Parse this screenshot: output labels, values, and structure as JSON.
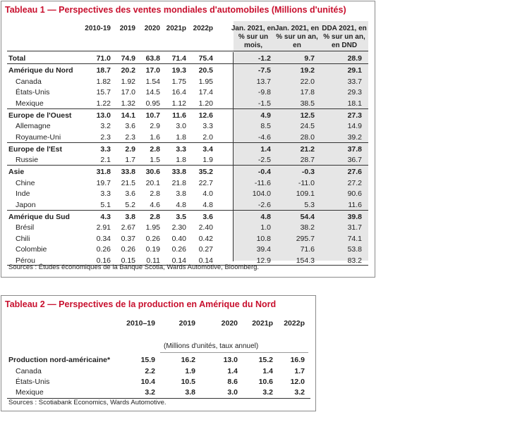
{
  "table1": {
    "title": "Tableau 1 — Perspectives des ventes mondiales d'automobiles (Millions d'unités)",
    "columns": [
      "2010-19",
      "2019",
      "2020",
      "2021p",
      "2022p"
    ],
    "columns_pct": [
      "Jan. 2021, en % sur un mois,",
      "Jan. 2021, en % sur un an, en",
      "DDA 2021, en % sur un an, en DND"
    ],
    "source": "Sources : Études économiques de la Banque Scotia, Wards Automotive, Bloomberg.",
    "groups": [
      {
        "rows": [
          {
            "label": "Total",
            "bold": true,
            "values": [
              "71.0",
              "74.9",
              "63.8",
              "71.4",
              "75.4"
            ],
            "pct": [
              "-1.2",
              "9.7",
              "28.9"
            ]
          }
        ]
      },
      {
        "rows": [
          {
            "label": "Amérique du Nord",
            "bold": true,
            "values": [
              "18.7",
              "20.2",
              "17.0",
              "19.3",
              "20.5"
            ],
            "pct": [
              "-7.5",
              "19.2",
              "29.1"
            ]
          },
          {
            "label": "Canada",
            "values": [
              "1.82",
              "1.92",
              "1.54",
              "1.75",
              "1.95"
            ],
            "pct": [
              "13.7",
              "22.0",
              "33.7"
            ]
          },
          {
            "label": "États-Unis",
            "values": [
              "15.7",
              "17.0",
              "14.5",
              "16.4",
              "17.4"
            ],
            "pct": [
              "-9.8",
              "17.8",
              "29.3"
            ]
          },
          {
            "label": "Mexique",
            "values": [
              "1.22",
              "1.32",
              "0.95",
              "1.12",
              "1.20"
            ],
            "pct": [
              "-1.5",
              "38.5",
              "18.1"
            ]
          }
        ]
      },
      {
        "rows": [
          {
            "label": "Europe de l'Ouest",
            "bold": true,
            "values": [
              "13.0",
              "14.1",
              "10.7",
              "11.6",
              "12.6"
            ],
            "pct": [
              "4.9",
              "12.5",
              "27.3"
            ]
          },
          {
            "label": "Allemagne",
            "values": [
              "3.2",
              "3.6",
              "2.9",
              "3.0",
              "3.3"
            ],
            "pct": [
              "8.5",
              "24.5",
              "14.9"
            ]
          },
          {
            "label": "Royaume-Uni",
            "values": [
              "2.3",
              "2.3",
              "1.6",
              "1.8",
              "2.0"
            ],
            "pct": [
              "-4.6",
              "28.0",
              "39.2"
            ]
          }
        ]
      },
      {
        "rows": [
          {
            "label": "Europe de l'Est",
            "bold": true,
            "values": [
              "3.3",
              "2.9",
              "2.8",
              "3.3",
              "3.4"
            ],
            "pct": [
              "1.4",
              "21.2",
              "37.8"
            ]
          },
          {
            "label": "Russie",
            "values": [
              "2.1",
              "1.7",
              "1.5",
              "1.8",
              "1.9"
            ],
            "pct": [
              "-2.5",
              "28.7",
              "36.7"
            ]
          }
        ]
      },
      {
        "rows": [
          {
            "label": "Asie",
            "bold": true,
            "values": [
              "31.8",
              "33.8",
              "30.6",
              "33.8",
              "35.2"
            ],
            "pct": [
              "-0.4",
              "-0.3",
              "27.6"
            ]
          },
          {
            "label": "Chine",
            "values": [
              "19.7",
              "21.5",
              "20.1",
              "21.8",
              "22.7"
            ],
            "pct": [
              "-11.6",
              "-11.0",
              "27.2"
            ]
          },
          {
            "label": "Inde",
            "values": [
              "3.3",
              "3.6",
              "2.8",
              "3.8",
              "4.0"
            ],
            "pct": [
              "104.0",
              "109.1",
              "90.6"
            ]
          },
          {
            "label": "Japon",
            "values": [
              "5.1",
              "5.2",
              "4.6",
              "4.8",
              "4.8"
            ],
            "pct": [
              "-2.6",
              "5.3",
              "11.6"
            ]
          }
        ]
      },
      {
        "rows": [
          {
            "label": "Amérique du Sud",
            "bold": true,
            "values": [
              "4.3",
              "3.8",
              "2.8",
              "3.5",
              "3.6"
            ],
            "pct": [
              "4.8",
              "54.4",
              "39.8"
            ]
          },
          {
            "label": "Brésil",
            "values": [
              "2.91",
              "2.67",
              "1.95",
              "2.30",
              "2.40"
            ],
            "pct": [
              "1.0",
              "38.2",
              "31.7"
            ]
          },
          {
            "label": "Chili",
            "values": [
              "0.34",
              "0.37",
              "0.26",
              "0.40",
              "0.42"
            ],
            "pct": [
              "10.8",
              "295.7",
              "74.1"
            ]
          },
          {
            "label": "Colombie",
            "values": [
              "0.26",
              "0.26",
              "0.19",
              "0.26",
              "0.27"
            ],
            "pct": [
              "39.4",
              "71.6",
              "53.8"
            ]
          },
          {
            "label": "Pérou",
            "values": [
              "0.16",
              "0.15",
              "0.11",
              "0.14",
              "0.14"
            ],
            "pct": [
              "12.9",
              "154.3",
              "83.2"
            ]
          }
        ]
      }
    ]
  },
  "table2": {
    "title": "Tableau 2 — Perspectives de la production en Amérique du Nord",
    "columns": [
      "2010–19",
      "2019",
      "2020",
      "2021p",
      "2022p"
    ],
    "unit_note": "(Millions d'unités, taux annuel)",
    "rows": [
      {
        "label": "Production nord-américaine*",
        "values": [
          "15.9",
          "16.2",
          "13.0",
          "15.2",
          "16.9"
        ]
      },
      {
        "label": "Canada",
        "values": [
          "2.2",
          "1.9",
          "1.4",
          "1.4",
          "1.7"
        ]
      },
      {
        "label": "États-Unis",
        "values": [
          "10.4",
          "10.5",
          "8.6",
          "10.6",
          "12.0"
        ]
      },
      {
        "label": "Mexique",
        "values": [
          "3.2",
          "3.8",
          "3.0",
          "3.2",
          "3.2"
        ]
      }
    ],
    "source": "Sources : Scotiabank Economics, Wards Automotive."
  }
}
